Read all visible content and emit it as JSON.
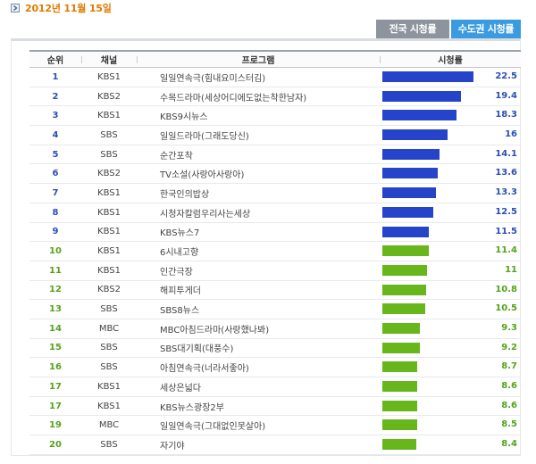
{
  "date": "2012년 11월 15일",
  "tabs": [
    {
      "label": "전국 시청률",
      "active": false
    },
    {
      "label": "수도권 시청률",
      "active": true
    }
  ],
  "table": {
    "headers": [
      "순위",
      "채널",
      "프로그램",
      "시청률"
    ],
    "rating_scale_max": 22.5,
    "rows": [
      {
        "rank": "1",
        "channel": "KBS1",
        "program": "일일연속극(힘내요미스터김)",
        "rating": "22.5",
        "value": 22.5,
        "color": "blue"
      },
      {
        "rank": "2",
        "channel": "KBS2",
        "program": "수목드라마(세상어디에도없는착한남자)",
        "rating": "19.4",
        "value": 19.4,
        "color": "blue"
      },
      {
        "rank": "3",
        "channel": "KBS1",
        "program": "KBS9시뉴스",
        "rating": "18.3",
        "value": 18.3,
        "color": "blue"
      },
      {
        "rank": "4",
        "channel": "SBS",
        "program": "일일드라마(그래도당신)",
        "rating": "16",
        "value": 16,
        "color": "blue"
      },
      {
        "rank": "5",
        "channel": "SBS",
        "program": "순간포착",
        "rating": "14.1",
        "value": 14.1,
        "color": "blue"
      },
      {
        "rank": "6",
        "channel": "KBS2",
        "program": "TV소설(사랑아사랑아)",
        "rating": "13.6",
        "value": 13.6,
        "color": "blue"
      },
      {
        "rank": "7",
        "channel": "KBS1",
        "program": "한국인의밥상",
        "rating": "13.3",
        "value": 13.3,
        "color": "blue"
      },
      {
        "rank": "8",
        "channel": "KBS1",
        "program": "시청자칼럼우리사는세상",
        "rating": "12.5",
        "value": 12.5,
        "color": "blue"
      },
      {
        "rank": "9",
        "channel": "KBS1",
        "program": "KBS뉴스7",
        "rating": "11.5",
        "value": 11.5,
        "color": "blue"
      },
      {
        "rank": "10",
        "channel": "KBS1",
        "program": "6시내고향",
        "rating": "11.4",
        "value": 11.4,
        "color": "green"
      },
      {
        "rank": "11",
        "channel": "KBS1",
        "program": "인간극장",
        "rating": "11",
        "value": 11,
        "color": "green"
      },
      {
        "rank": "12",
        "channel": "KBS2",
        "program": "해피투게더",
        "rating": "10.8",
        "value": 10.8,
        "color": "green"
      },
      {
        "rank": "13",
        "channel": "SBS",
        "program": "SBS8뉴스",
        "rating": "10.5",
        "value": 10.5,
        "color": "green"
      },
      {
        "rank": "14",
        "channel": "MBC",
        "program": "MBC아침드라마(사랑했나봐)",
        "rating": "9.3",
        "value": 9.3,
        "color": "green"
      },
      {
        "rank": "15",
        "channel": "SBS",
        "program": "SBS대기획(대풍수)",
        "rating": "9.2",
        "value": 9.2,
        "color": "green"
      },
      {
        "rank": "16",
        "channel": "SBS",
        "program": "아침연속극(너라서좋아)",
        "rating": "8.7",
        "value": 8.7,
        "color": "green"
      },
      {
        "rank": "17",
        "channel": "KBS1",
        "program": "세상은넓다",
        "rating": "8.6",
        "value": 8.6,
        "color": "green"
      },
      {
        "rank": "17",
        "channel": "KBS1",
        "program": "KBS뉴스광장2부",
        "rating": "8.6",
        "value": 8.6,
        "color": "green"
      },
      {
        "rank": "19",
        "channel": "MBC",
        "program": "일일연속극(그대없인못살아)",
        "rating": "8.5",
        "value": 8.5,
        "color": "green"
      },
      {
        "rank": "20",
        "channel": "SBS",
        "program": "자기야",
        "rating": "8.4",
        "value": 8.4,
        "color": "green"
      }
    ]
  }
}
